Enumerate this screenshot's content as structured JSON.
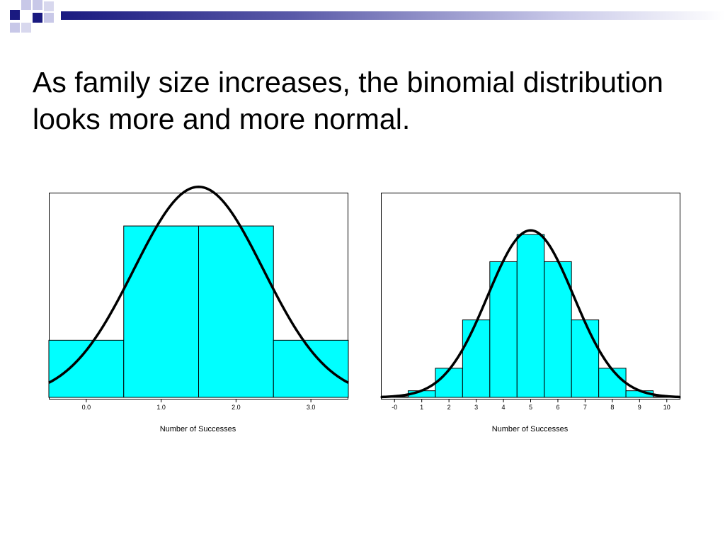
{
  "slide": {
    "title": "As family size increases, the binomial distribution looks more and more normal."
  },
  "colors": {
    "bar_fill": "#00ffff",
    "bar_stroke": "#000000",
    "curve": "#000000",
    "deco_dark": "#1a1a80",
    "deco_light": "#c8c8e8"
  },
  "chart_data": [
    {
      "type": "bar",
      "xlabel": "Number of Successes",
      "ylabel": "",
      "x": [
        0,
        1,
        2,
        3
      ],
      "tick_labels": [
        "0.0",
        "1.0",
        "2.0",
        "3.0"
      ],
      "values": [
        0.125,
        0.375,
        0.375,
        0.125
      ],
      "xlim": [
        -0.5,
        3.5
      ],
      "ylim": [
        0,
        0.42
      ],
      "overlay_curve": {
        "type": "normal",
        "mean": 1.5,
        "sd": 0.866
      },
      "grid": false
    },
    {
      "type": "bar",
      "xlabel": "Number of Successes",
      "ylabel": "",
      "x": [
        0,
        1,
        2,
        3,
        4,
        5,
        6,
        7,
        8,
        9,
        10
      ],
      "tick_labels": [
        "-0",
        "1",
        "2",
        "3",
        "4",
        "5",
        "6",
        "7",
        "8",
        "9",
        "10"
      ],
      "values": [
        0.001,
        0.01,
        0.044,
        0.117,
        0.205,
        0.246,
        0.205,
        0.117,
        0.044,
        0.01,
        0.001
      ],
      "xlim": [
        -0.5,
        10.5
      ],
      "ylim": [
        0,
        0.29
      ],
      "overlay_curve": {
        "type": "normal",
        "mean": 5,
        "sd": 1.581
      },
      "grid": false
    }
  ]
}
